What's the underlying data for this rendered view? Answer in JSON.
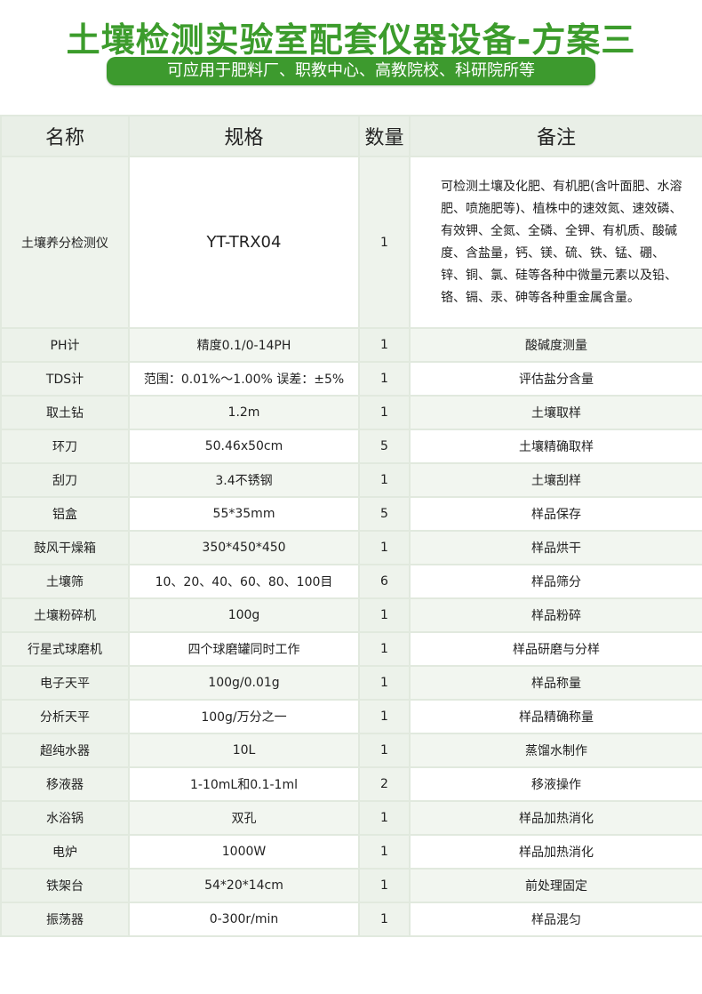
{
  "title": "土壤检测实验室配套仪器设备-方案三",
  "subtitle": "可应用于肥料厂、职教中心、高教院校、科研院所等",
  "colors": {
    "title": "#3c9c2c",
    "banner": "#3d9a2e",
    "header_bg": "#e9efe7"
  },
  "table": {
    "headers": [
      "名称",
      "规格",
      "数量",
      "备注"
    ],
    "main_row": {
      "name": "土壤养分检测仪",
      "spec": "YT-TRX04",
      "qty": "1",
      "note": "可检测土壤及化肥、有机肥(含叶面肥、水溶肥、喷施肥等)、植株中的速效氮、速效磷、有效钾、全氮、全磷、全钾、有机质、酸碱度、含盐量，钙、镁、硫、铁、锰、硼、锌、铜、氯、硅等各种中微量元素以及铅、铬、镉、汞、砷等各种重金属含量。"
    },
    "rows": [
      {
        "name": "PH计",
        "spec": "精度0.1/0-14PH",
        "qty": "1",
        "note": "酸碱度测量"
      },
      {
        "name": "TDS计",
        "spec": "范围：0.01%～1.00%  误差：±5%",
        "qty": "1",
        "note": "评估盐分含量"
      },
      {
        "name": "取土钻",
        "spec": "1.2m",
        "qty": "1",
        "note": "土壤取样"
      },
      {
        "name": "环刀",
        "spec": "50.46x50cm",
        "qty": "5",
        "note": "土壤精确取样"
      },
      {
        "name": "刮刀",
        "spec": "3.4不锈钢",
        "qty": "1",
        "note": "土壤刮样"
      },
      {
        "name": "铝盒",
        "spec": "55*35mm",
        "qty": "5",
        "note": "样品保存"
      },
      {
        "name": "鼓风干燥箱",
        "spec": "350*450*450",
        "qty": "1",
        "note": "样品烘干"
      },
      {
        "name": "土壤筛",
        "spec": "10、20、40、60、80、100目",
        "qty": "6",
        "note": "样品筛分"
      },
      {
        "name": "土壤粉碎机",
        "spec": "100g",
        "qty": "1",
        "note": "样品粉碎"
      },
      {
        "name": "行星式球磨机",
        "spec": "四个球磨罐同时工作",
        "qty": "1",
        "note": "样品研磨与分样"
      },
      {
        "name": "电子天平",
        "spec": "100g/0.01g",
        "qty": "1",
        "note": "样品称量"
      },
      {
        "name": "分析天平",
        "spec": "100g/万分之一",
        "qty": "1",
        "note": "样品精确称量"
      },
      {
        "name": "超纯水器",
        "spec": "10L",
        "qty": "1",
        "note": "蒸馏水制作"
      },
      {
        "name": "移液器",
        "spec": "1-10mL和0.1-1ml",
        "qty": "2",
        "note": "移液操作"
      },
      {
        "name": "水浴锅",
        "spec": "双孔",
        "qty": "1",
        "note": "样品加热消化"
      },
      {
        "name": "电炉",
        "spec": "1000W",
        "qty": "1",
        "note": "样品加热消化"
      },
      {
        "name": "铁架台",
        "spec": "54*20*14cm",
        "qty": "1",
        "note": "前处理固定"
      },
      {
        "name": "振荡器",
        "spec": "0-300r/min",
        "qty": "1",
        "note": "样品混匀"
      }
    ]
  }
}
